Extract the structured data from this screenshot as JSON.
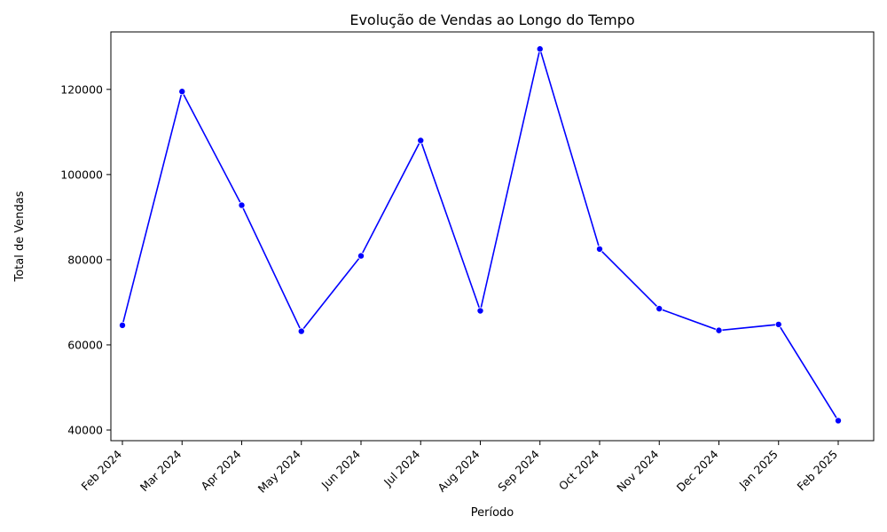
{
  "chart_data": {
    "type": "line",
    "title": "Evolução de Vendas ao Longo do Tempo",
    "xlabel": "Período",
    "ylabel": "Total de Vendas",
    "categories": [
      "Feb 2024",
      "Mar 2024",
      "Apr 2024",
      "May 2024",
      "Jun 2024",
      "Jul 2024",
      "Aug 2024",
      "Sep 2024",
      "Oct 2024",
      "Nov 2024",
      "Dec 2024",
      "Jan 2025",
      "Feb 2025"
    ],
    "series": [
      {
        "values": [
          64600,
          119500,
          92800,
          63200,
          80900,
          108000,
          68000,
          129500,
          82500,
          68500,
          63400,
          64800,
          42200
        ]
      }
    ],
    "yticks": [
      40000,
      60000,
      80000,
      100000,
      120000
    ],
    "ylim": [
      37500,
      133500
    ],
    "grid": false,
    "line_color": "#0000ff",
    "marker_color": "#0000ff"
  }
}
